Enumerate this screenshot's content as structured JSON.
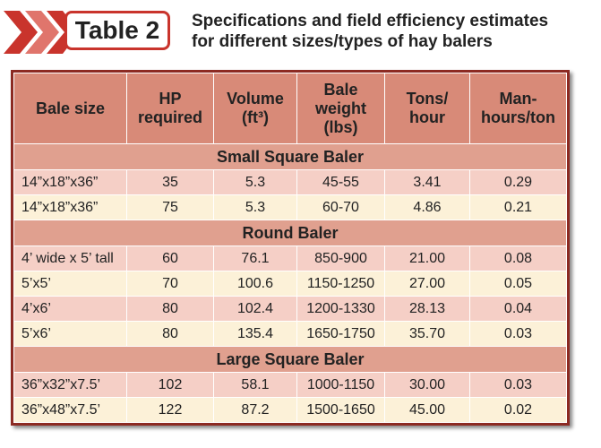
{
  "header": {
    "label": "Table 2",
    "title_lines": [
      "Specifications and field efficiency estimates",
      "for different sizes/types of hay balers"
    ]
  },
  "table": {
    "columns": [
      [
        "Bale size"
      ],
      [
        "HP",
        "required"
      ],
      [
        "Volume",
        "(ft³)"
      ],
      [
        "Bale",
        "weight",
        "(lbs)"
      ],
      [
        "Tons/",
        "hour"
      ],
      [
        "Man-",
        "hours/ton"
      ]
    ],
    "sections": [
      {
        "title": "Small Square Baler",
        "rows": [
          [
            "14”x18”x36”",
            "35",
            "5.3",
            "45-55",
            "3.41",
            "0.29"
          ],
          [
            "14”x18”x36”",
            "75",
            "5.3",
            "60-70",
            "4.86",
            "0.21"
          ]
        ]
      },
      {
        "title": "Round Baler",
        "rows": [
          [
            "4’ wide x 5’ tall",
            "60",
            "76.1",
            "850-900",
            "21.00",
            "0.08"
          ],
          [
            "5’x5’",
            "70",
            "100.6",
            "1150-1250",
            "27.00",
            "0.05"
          ],
          [
            "4’x6’",
            "80",
            "102.4",
            "1200-1330",
            "28.13",
            "0.04"
          ],
          [
            "5’x6’",
            "80",
            "135.4",
            "1650-1750",
            "35.70",
            "0.03"
          ]
        ]
      },
      {
        "title": "Large Square Baler",
        "rows": [
          [
            "36”x32”x7.5’",
            "102",
            "58.1",
            "1000-1150",
            "30.00",
            "0.03"
          ],
          [
            "36”x48”x7.5’",
            "122",
            "87.2",
            "1500-1650",
            "45.00",
            "0.02"
          ]
        ]
      }
    ]
  }
}
